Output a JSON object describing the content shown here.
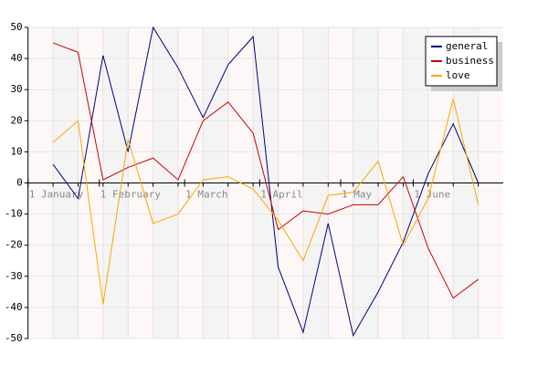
{
  "chart_data": {
    "type": "line",
    "x": [
      1,
      2,
      3,
      4,
      5,
      6,
      7,
      8,
      9,
      10,
      11,
      12,
      13,
      14,
      15,
      16,
      17,
      18
    ],
    "xlim": [
      0,
      19
    ],
    "xticks": [
      {
        "value": 0,
        "label": "1 January"
      },
      {
        "value": 2.85,
        "label": "1 February"
      },
      {
        "value": 6.26,
        "label": "1 March"
      },
      {
        "value": 9.26,
        "label": "1 April"
      },
      {
        "value": 12.5,
        "label": "1 May"
      },
      {
        "value": 15.4,
        "label": "1 June"
      }
    ],
    "ylim": [
      -50,
      50
    ],
    "yticks": [
      -50,
      -40,
      -30,
      -20,
      -10,
      0,
      10,
      20,
      30,
      40,
      50
    ],
    "grid": true,
    "legend": "top-right",
    "series": [
      {
        "name": "general",
        "color": "#000080",
        "values": [
          6,
          -5,
          41,
          10,
          50,
          37,
          21,
          38,
          47,
          -27,
          -48,
          -13,
          -49,
          -35,
          -19,
          3,
          19,
          0
        ]
      },
      {
        "name": "business",
        "color": "#cc0000",
        "values": [
          45,
          42,
          1,
          5,
          8,
          1,
          20,
          26,
          16,
          -15,
          -9,
          -10,
          -7,
          -7,
          2,
          -21,
          -37,
          -31
        ]
      },
      {
        "name": "love",
        "color": "#ffa500",
        "values": [
          13,
          20,
          -39,
          14,
          -13,
          -10,
          1,
          2,
          -2,
          -12,
          -25,
          -4,
          -3,
          7,
          -20,
          -5,
          27,
          -7
        ]
      }
    ]
  }
}
